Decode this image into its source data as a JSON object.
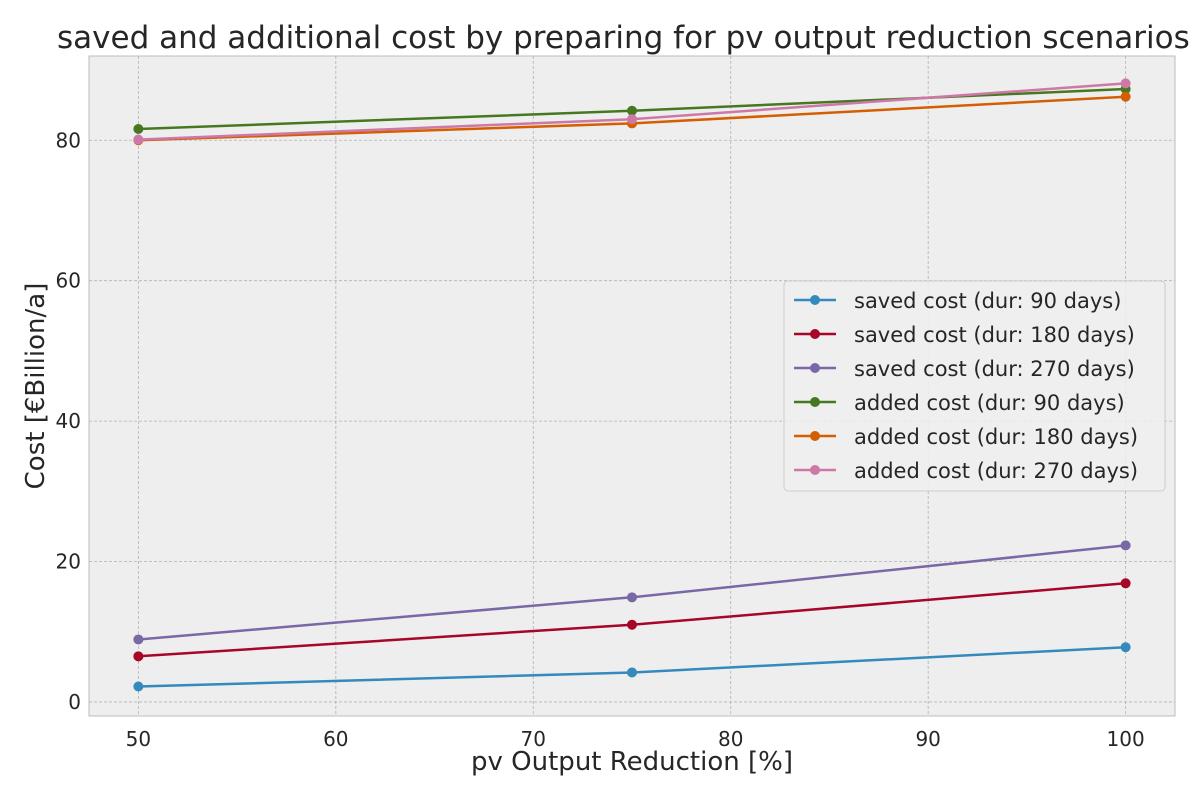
{
  "chart_data": {
    "type": "line",
    "title": "saved and additional cost by preparing for pv output reduction scenarios",
    "xlabel": "pv Output Reduction [%]",
    "ylabel": "Cost [€Billion/a]",
    "x": [
      50,
      75,
      100
    ],
    "xlim": [
      47.5,
      102.5
    ],
    "ylim": [
      -2,
      92
    ],
    "xticks": [
      50,
      60,
      70,
      80,
      90,
      100
    ],
    "yticks": [
      0,
      20,
      40,
      60,
      80
    ],
    "grid": true,
    "legend_position": "center-right",
    "series": [
      {
        "name": "saved cost (dur: 90 days)",
        "color": "#348ABD",
        "values": [
          2.2,
          4.2,
          7.8
        ]
      },
      {
        "name": "saved cost (dur: 180 days)",
        "color": "#A60628",
        "values": [
          6.5,
          11.0,
          16.9
        ]
      },
      {
        "name": "saved cost (dur: 270 days)",
        "color": "#7A68A6",
        "values": [
          8.9,
          14.9,
          22.3
        ]
      },
      {
        "name": "added cost (dur: 90 days)",
        "color": "#467821",
        "values": [
          81.6,
          84.2,
          87.3
        ]
      },
      {
        "name": "added cost (dur: 180 days)",
        "color": "#D55E00",
        "values": [
          80.0,
          82.4,
          86.2
        ]
      },
      {
        "name": "added cost (dur: 270 days)",
        "color": "#CC79A7",
        "values": [
          80.1,
          83.0,
          88.1
        ]
      }
    ]
  }
}
